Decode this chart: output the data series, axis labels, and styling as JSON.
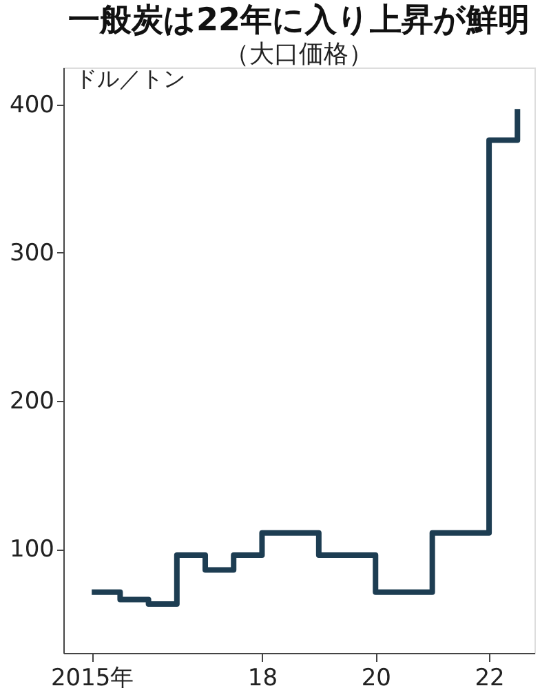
{
  "chart_data": {
    "type": "step",
    "title": "一般炭は22年に入り上昇が鮮明",
    "subtitle": "（大口価格）",
    "ylabel": "ドル／トン",
    "x": [
      2015,
      2015.5,
      2016,
      2016.5,
      2017,
      2017.5,
      2018,
      2019,
      2020,
      2021,
      2022,
      2022.5
    ],
    "series": [
      {
        "color": "#1d3d52",
        "values": [
          71,
          66,
          63,
          96,
          86,
          96,
          111,
          96,
          71,
          111,
          376,
          397
        ]
      }
    ],
    "xlim": [
      2014.5,
      2022.8
    ],
    "xticks": [
      {
        "value": 2015,
        "label": "2015年"
      },
      {
        "value": 2018,
        "label": "18"
      },
      {
        "value": 2020,
        "label": "20"
      },
      {
        "value": 2022,
        "label": "22"
      }
    ],
    "ylim": [
      30,
      425
    ],
    "yticks": [
      100,
      200,
      300,
      400
    ],
    "grid": false,
    "line_style": "solid",
    "marker": "none"
  }
}
